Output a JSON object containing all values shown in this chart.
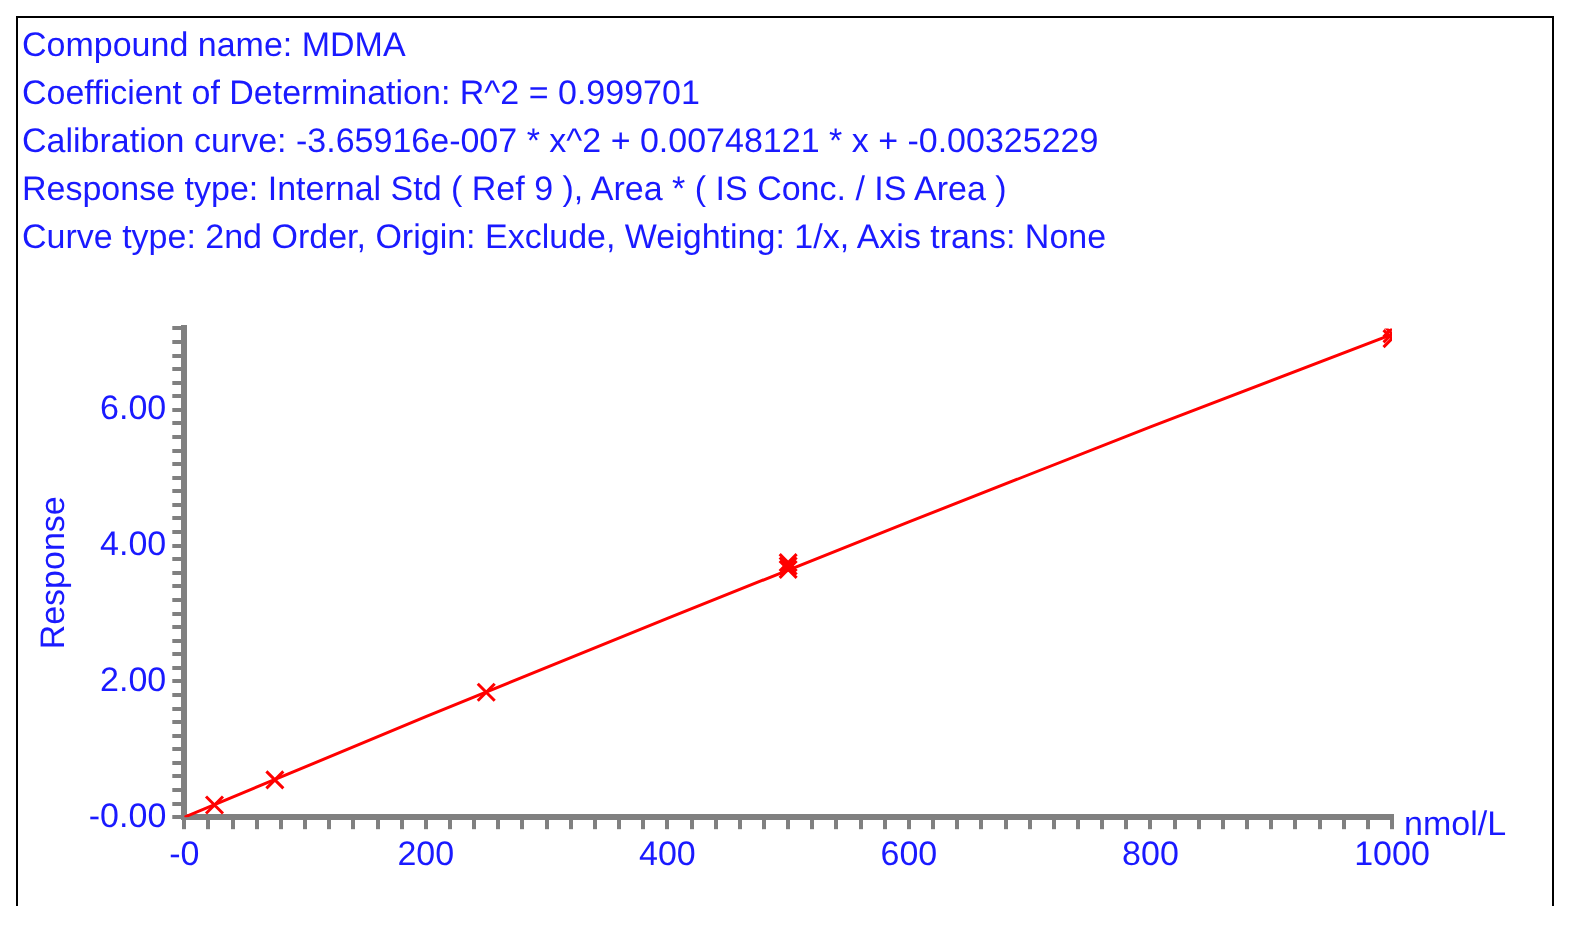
{
  "chart_data": {
    "type": "scatter",
    "title": "Compound name: MDMA",
    "annotations": [
      "Coefficient of Determination: R^2 = 0.999701",
      "Calibration curve: -3.65916e-007 * x^2 + 0.00748121 * x + -0.00325229",
      "Response type: Internal Std ( Ref 9 ), Area * ( IS Conc. / IS Area )",
      "Curve type: 2nd Order, Origin: Exclude, Weighting: 1/x, Axis trans: None"
    ],
    "xlabel": "nmol/L",
    "ylabel": "Response",
    "series": [
      {
        "type": "line",
        "color": "#ff0000",
        "marker": "none",
        "line_style": "solid",
        "x": [
          0,
          200,
          400,
          600,
          800,
          1000
        ],
        "values": [
          0,
          1.48,
          2.93,
          4.35,
          5.75,
          7.11
        ]
      },
      {
        "type": "scatter",
        "color": "#ff0000",
        "marker": "cross",
        "x": [
          25,
          75,
          250,
          500,
          500,
          500,
          1000,
          1000,
          1000
        ],
        "values": [
          0.18,
          0.55,
          1.84,
          3.65,
          3.7,
          3.75,
          7.05,
          7.12,
          7.2
        ]
      }
    ],
    "xlim": [
      0,
      1000
    ],
    "xticks": [
      {
        "value": 0,
        "label": "-0"
      },
      {
        "value": 20,
        "label": null
      },
      {
        "value": 40,
        "label": null
      },
      {
        "value": 60,
        "label": null
      },
      {
        "value": 80,
        "label": null
      },
      {
        "value": 100,
        "label": null
      },
      {
        "value": 120,
        "label": null
      },
      {
        "value": 140,
        "label": null
      },
      {
        "value": 160,
        "label": null
      },
      {
        "value": 180,
        "label": null
      },
      200,
      {
        "value": 220,
        "label": null
      },
      {
        "value": 240,
        "label": null
      },
      {
        "value": 260,
        "label": null
      },
      {
        "value": 280,
        "label": null
      },
      {
        "value": 300,
        "label": null
      },
      {
        "value": 320,
        "label": null
      },
      {
        "value": 340,
        "label": null
      },
      {
        "value": 360,
        "label": null
      },
      {
        "value": 380,
        "label": null
      },
      400,
      {
        "value": 420,
        "label": null
      },
      {
        "value": 440,
        "label": null
      },
      {
        "value": 460,
        "label": null
      },
      {
        "value": 480,
        "label": null
      },
      {
        "value": 500,
        "label": null
      },
      {
        "value": 520,
        "label": null
      },
      {
        "value": 540,
        "label": null
      },
      {
        "value": 560,
        "label": null
      },
      {
        "value": 580,
        "label": null
      },
      600,
      {
        "value": 620,
        "label": null
      },
      {
        "value": 640,
        "label": null
      },
      {
        "value": 660,
        "label": null
      },
      {
        "value": 680,
        "label": null
      },
      {
        "value": 700,
        "label": null
      },
      {
        "value": 720,
        "label": null
      },
      {
        "value": 740,
        "label": null
      },
      {
        "value": 760,
        "label": null
      },
      {
        "value": 780,
        "label": null
      },
      800,
      {
        "value": 820,
        "label": null
      },
      {
        "value": 840,
        "label": null
      },
      {
        "value": 860,
        "label": null
      },
      {
        "value": 880,
        "label": null
      },
      {
        "value": 900,
        "label": null
      },
      {
        "value": 920,
        "label": null
      },
      {
        "value": 940,
        "label": null
      },
      {
        "value": 960,
        "label": null
      },
      {
        "value": 980,
        "label": null
      },
      1000
    ],
    "ylim": [
      0,
      7.2
    ],
    "yticks": [
      {
        "value": 0,
        "label": "-0.00"
      },
      {
        "value": 0.2,
        "label": null
      },
      {
        "value": 0.4,
        "label": null
      },
      {
        "value": 0.6,
        "label": null
      },
      {
        "value": 0.8,
        "label": null
      },
      {
        "value": 1,
        "label": null
      },
      {
        "value": 1.2,
        "label": null
      },
      {
        "value": 1.4,
        "label": null
      },
      {
        "value": 1.6,
        "label": null
      },
      {
        "value": 1.8,
        "label": null
      },
      {
        "value": 2,
        "label": "2.00"
      },
      {
        "value": 2.2,
        "label": null
      },
      {
        "value": 2.4,
        "label": null
      },
      {
        "value": 2.6,
        "label": null
      },
      {
        "value": 2.8,
        "label": null
      },
      {
        "value": 3,
        "label": null
      },
      {
        "value": 3.2,
        "label": null
      },
      {
        "value": 3.4,
        "label": null
      },
      {
        "value": 3.6,
        "label": null
      },
      {
        "value": 3.8,
        "label": null
      },
      {
        "value": 4,
        "label": "4.00"
      },
      {
        "value": 4.2,
        "label": null
      },
      {
        "value": 4.4,
        "label": null
      },
      {
        "value": 4.6,
        "label": null
      },
      {
        "value": 4.8,
        "label": null
      },
      {
        "value": 5,
        "label": null
      },
      {
        "value": 5.2,
        "label": null
      },
      {
        "value": 5.4,
        "label": null
      },
      {
        "value": 5.6,
        "label": null
      },
      {
        "value": 5.8,
        "label": null
      },
      {
        "value": 6,
        "label": "6.00"
      },
      {
        "value": 6.2,
        "label": null
      },
      {
        "value": 6.4,
        "label": null
      },
      {
        "value": 6.6,
        "label": null
      },
      {
        "value": 6.8,
        "label": null
      },
      {
        "value": 7,
        "label": null
      },
      {
        "value": 7.2,
        "label": null
      }
    ],
    "grid": false,
    "legend": false
  }
}
